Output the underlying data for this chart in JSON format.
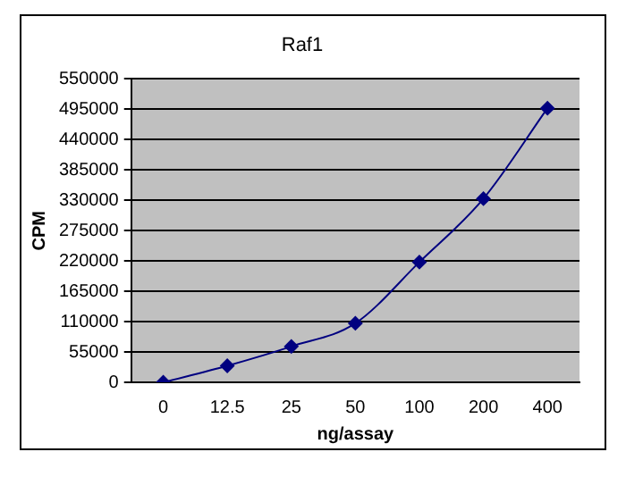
{
  "chart_data": {
    "type": "line",
    "title": "Raf1",
    "xlabel": "ng/assay",
    "ylabel": "CPM",
    "categories": [
      "0",
      "12.5",
      "25",
      "50",
      "100",
      "200",
      "400"
    ],
    "series": [
      {
        "color": "#000080",
        "values": [
          0,
          30000,
          65000,
          107000,
          218000,
          333000,
          497000
        ]
      }
    ],
    "ylim": [
      0,
      550000
    ],
    "yticks": [
      0,
      55000,
      110000,
      165000,
      220000,
      275000,
      330000,
      385000,
      440000,
      495000,
      550000
    ],
    "grid": "y",
    "legend": false,
    "marker": "diamond",
    "line_style": "solid"
  }
}
